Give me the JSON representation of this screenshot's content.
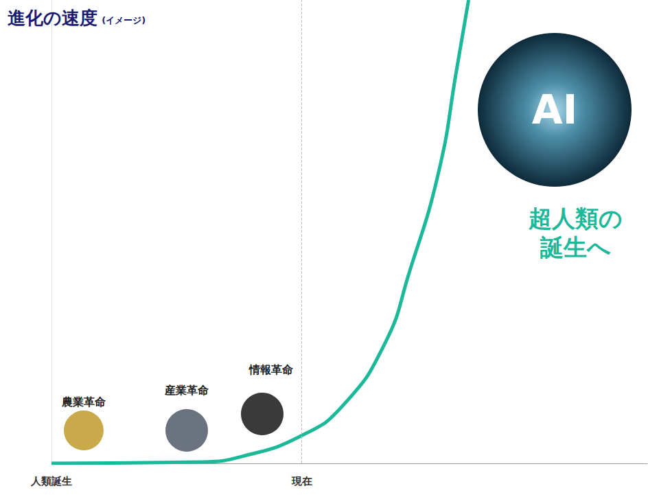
{
  "chart_data": {
    "type": "line",
    "title": "進化の速度",
    "subtitle": "(イメージ)",
    "x": [
      0,
      25,
      32,
      42,
      49,
      56,
      60,
      65,
      68,
      70
    ],
    "values": [
      0,
      0.3,
      1.5,
      6,
      12.6,
      26,
      41,
      63,
      85,
      100
    ],
    "color": "#1bb89a",
    "xlim": [
      0,
      100
    ],
    "xticks": [
      {
        "value": 0,
        "label": "人類誕生"
      },
      {
        "value": 42,
        "label": "現在"
      }
    ],
    "ylim": [
      0,
      100
    ],
    "grid": false,
    "tick_labels": "x",
    "annotations": {
      "milestones": [
        "農業革命",
        "産業革命",
        "情報革命"
      ],
      "badge": "AI",
      "caption": [
        "超人類の",
        "誕生へ"
      ]
    }
  }
}
